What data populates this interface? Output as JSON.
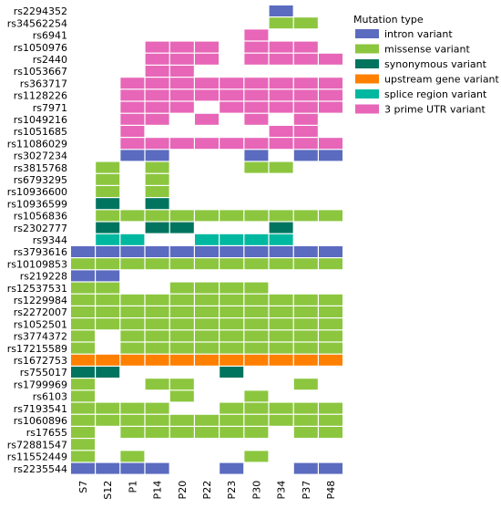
{
  "chart_data": {
    "type": "heatmap",
    "title": "",
    "xlabel": "",
    "ylabel": "",
    "legend_title": "Mutation type",
    "legend_position": "top-right",
    "categories_x": [
      "S7",
      "S12",
      "P1",
      "P14",
      "P20",
      "P22",
      "P23",
      "P30",
      "P34",
      "P37",
      "P48"
    ],
    "categories_y": [
      "rs2294352",
      "rs34562254",
      "rs6941",
      "rs1050976",
      "rs2440",
      "rs1053667",
      "rs363717",
      "rs1128226",
      "rs7971",
      "rs1049216",
      "rs1051685",
      "rs11086029",
      "rs3027234",
      "rs3815768",
      "rs6793295",
      "rs10936600",
      "rs10936599",
      "rs1056836",
      "rs2302777",
      "rs9344",
      "rs3793616",
      "rs10109853",
      "rs219228",
      "rs12537531",
      "rs1229984",
      "rs2272007",
      "rs1052501",
      "rs3774372",
      "rs17215589",
      "rs1672753",
      "rs755017",
      "rs1799969",
      "rs6103",
      "rs7193541",
      "rs1060896",
      "rs17655",
      "rs72881547",
      "rs11552449",
      "rs2235544"
    ],
    "legend": [
      {
        "key": "intron",
        "label": "intron variant",
        "color": "#5b6bbf"
      },
      {
        "key": "missense",
        "label": "missense variant",
        "color": "#8cc63f"
      },
      {
        "key": "synonymous",
        "label": "synonymous variant",
        "color": "#00745f"
      },
      {
        "key": "upstream",
        "label": "upstream gene variant",
        "color": "#ff8000"
      },
      {
        "key": "splice",
        "label": "splice region variant",
        "color": "#00b8a0"
      },
      {
        "key": "utr3",
        "label": "3 prime UTR variant",
        "color": "#e766b8"
      }
    ],
    "cells": [
      {
        "snp": "rs2294352",
        "values": [
          null,
          null,
          null,
          null,
          null,
          null,
          null,
          null,
          "intron",
          null,
          null
        ]
      },
      {
        "snp": "rs34562254",
        "values": [
          null,
          null,
          null,
          null,
          null,
          null,
          null,
          null,
          "missense",
          "missense",
          null
        ]
      },
      {
        "snp": "rs6941",
        "values": [
          null,
          null,
          null,
          null,
          null,
          null,
          null,
          "utr3",
          null,
          null,
          null
        ]
      },
      {
        "snp": "rs1050976",
        "values": [
          null,
          null,
          null,
          "utr3",
          "utr3",
          "utr3",
          null,
          "utr3",
          "utr3",
          "utr3",
          null
        ]
      },
      {
        "snp": "rs2440",
        "values": [
          null,
          null,
          null,
          "utr3",
          "utr3",
          "utr3",
          null,
          "utr3",
          "utr3",
          "utr3",
          "utr3"
        ]
      },
      {
        "snp": "rs1053667",
        "values": [
          null,
          null,
          null,
          "utr3",
          "utr3",
          null,
          null,
          null,
          null,
          null,
          null
        ]
      },
      {
        "snp": "rs363717",
        "values": [
          null,
          null,
          "utr3",
          "utr3",
          "utr3",
          "utr3",
          "utr3",
          "utr3",
          "utr3",
          "utr3",
          "utr3"
        ]
      },
      {
        "snp": "rs1128226",
        "values": [
          null,
          null,
          "utr3",
          "utr3",
          "utr3",
          "utr3",
          "utr3",
          "utr3",
          "utr3",
          "utr3",
          "utr3"
        ]
      },
      {
        "snp": "rs7971",
        "values": [
          null,
          null,
          "utr3",
          "utr3",
          "utr3",
          null,
          "utr3",
          "utr3",
          "utr3",
          "utr3",
          "utr3"
        ]
      },
      {
        "snp": "rs1049216",
        "values": [
          null,
          null,
          "utr3",
          "utr3",
          null,
          "utr3",
          null,
          "utr3",
          null,
          "utr3",
          null
        ]
      },
      {
        "snp": "rs1051685",
        "values": [
          null,
          null,
          "utr3",
          null,
          null,
          null,
          null,
          null,
          "utr3",
          "utr3",
          null
        ]
      },
      {
        "snp": "rs11086029",
        "values": [
          null,
          null,
          "utr3",
          "utr3",
          "utr3",
          "utr3",
          "utr3",
          "utr3",
          "utr3",
          "utr3",
          "utr3"
        ]
      },
      {
        "snp": "rs3027234",
        "values": [
          null,
          null,
          "intron",
          "intron",
          null,
          null,
          null,
          "intron",
          null,
          "intron",
          "intron"
        ]
      },
      {
        "snp": "rs3815768",
        "values": [
          null,
          "missense",
          null,
          "missense",
          null,
          null,
          null,
          "missense",
          "missense",
          null,
          null
        ]
      },
      {
        "snp": "rs6793295",
        "values": [
          null,
          "missense",
          null,
          "missense",
          null,
          null,
          null,
          null,
          null,
          null,
          null
        ]
      },
      {
        "snp": "rs10936600",
        "values": [
          null,
          "missense",
          null,
          "missense",
          null,
          null,
          null,
          null,
          null,
          null,
          null
        ]
      },
      {
        "snp": "rs10936599",
        "values": [
          null,
          "synonymous",
          null,
          "synonymous",
          null,
          null,
          null,
          null,
          null,
          null,
          null
        ]
      },
      {
        "snp": "rs1056836",
        "values": [
          null,
          "missense",
          "missense",
          "missense",
          "missense",
          "missense",
          "missense",
          "missense",
          "missense",
          "missense",
          "missense"
        ]
      },
      {
        "snp": "rs2302777",
        "values": [
          null,
          "synonymous",
          null,
          "synonymous",
          "synonymous",
          null,
          null,
          null,
          "synonymous",
          null,
          null
        ]
      },
      {
        "snp": "rs9344",
        "values": [
          null,
          "splice",
          "splice",
          null,
          null,
          "splice",
          "splice",
          "splice",
          "splice",
          null,
          null
        ]
      },
      {
        "snp": "rs3793616",
        "values": [
          "intron",
          "intron",
          "intron",
          "intron",
          "intron",
          "intron",
          "intron",
          "intron",
          "intron",
          "intron",
          "intron"
        ]
      },
      {
        "snp": "rs10109853",
        "values": [
          "missense",
          "missense",
          "missense",
          "missense",
          "missense",
          "missense",
          "missense",
          "missense",
          "missense",
          "missense",
          "missense"
        ]
      },
      {
        "snp": "rs219228",
        "values": [
          "intron",
          "intron",
          null,
          null,
          null,
          null,
          null,
          null,
          null,
          null,
          null
        ]
      },
      {
        "snp": "rs12537531",
        "values": [
          "missense",
          "missense",
          null,
          null,
          "missense",
          "missense",
          "missense",
          "missense",
          null,
          null,
          null
        ]
      },
      {
        "snp": "rs1229984",
        "values": [
          "missense",
          "missense",
          "missense",
          "missense",
          "missense",
          "missense",
          "missense",
          "missense",
          "missense",
          "missense",
          "missense"
        ]
      },
      {
        "snp": "rs2272007",
        "values": [
          "missense",
          "missense",
          "missense",
          "missense",
          "missense",
          "missense",
          "missense",
          "missense",
          "missense",
          "missense",
          "missense"
        ]
      },
      {
        "snp": "rs1052501",
        "values": [
          "missense",
          "missense",
          "missense",
          "missense",
          "missense",
          "missense",
          "missense",
          "missense",
          "missense",
          "missense",
          "missense"
        ]
      },
      {
        "snp": "rs3774372",
        "values": [
          "missense",
          null,
          "missense",
          "missense",
          "missense",
          "missense",
          "missense",
          "missense",
          "missense",
          "missense",
          "missense"
        ]
      },
      {
        "snp": "rs17215589",
        "values": [
          "missense",
          null,
          "missense",
          "missense",
          "missense",
          "missense",
          "missense",
          "missense",
          "missense",
          "missense",
          "missense"
        ]
      },
      {
        "snp": "rs1672753",
        "values": [
          "upstream",
          "upstream",
          "upstream",
          "upstream",
          "upstream",
          "upstream",
          "upstream",
          "upstream",
          "upstream",
          "upstream",
          "upstream"
        ]
      },
      {
        "snp": "rs755017",
        "values": [
          "synonymous",
          "synonymous",
          null,
          null,
          null,
          null,
          "synonymous",
          null,
          null,
          null,
          null
        ]
      },
      {
        "snp": "rs1799969",
        "values": [
          "missense",
          null,
          null,
          "missense",
          "missense",
          null,
          null,
          null,
          null,
          "missense",
          null
        ]
      },
      {
        "snp": "rs6103",
        "values": [
          "missense",
          null,
          null,
          null,
          "missense",
          null,
          null,
          "missense",
          null,
          null,
          null
        ]
      },
      {
        "snp": "rs7193541",
        "values": [
          "missense",
          "missense",
          "missense",
          "missense",
          null,
          null,
          "missense",
          "missense",
          "missense",
          "missense",
          "missense"
        ]
      },
      {
        "snp": "rs1060896",
        "values": [
          "missense",
          "missense",
          "missense",
          "missense",
          "missense",
          "missense",
          "missense",
          "missense",
          "missense",
          "missense",
          "missense"
        ]
      },
      {
        "snp": "rs17655",
        "values": [
          "missense",
          null,
          "missense",
          "missense",
          "missense",
          "missense",
          "missense",
          "missense",
          null,
          "missense",
          "missense"
        ]
      },
      {
        "snp": "rs72881547",
        "values": [
          "missense",
          null,
          null,
          null,
          null,
          null,
          null,
          null,
          null,
          null,
          null
        ]
      },
      {
        "snp": "rs11552449",
        "values": [
          "missense",
          null,
          "missense",
          null,
          null,
          null,
          null,
          "missense",
          null,
          null,
          null
        ]
      },
      {
        "snp": "rs2235544",
        "values": [
          "intron",
          "intron",
          "intron",
          "intron",
          null,
          null,
          "intron",
          null,
          null,
          "intron",
          "intron"
        ]
      }
    ]
  }
}
